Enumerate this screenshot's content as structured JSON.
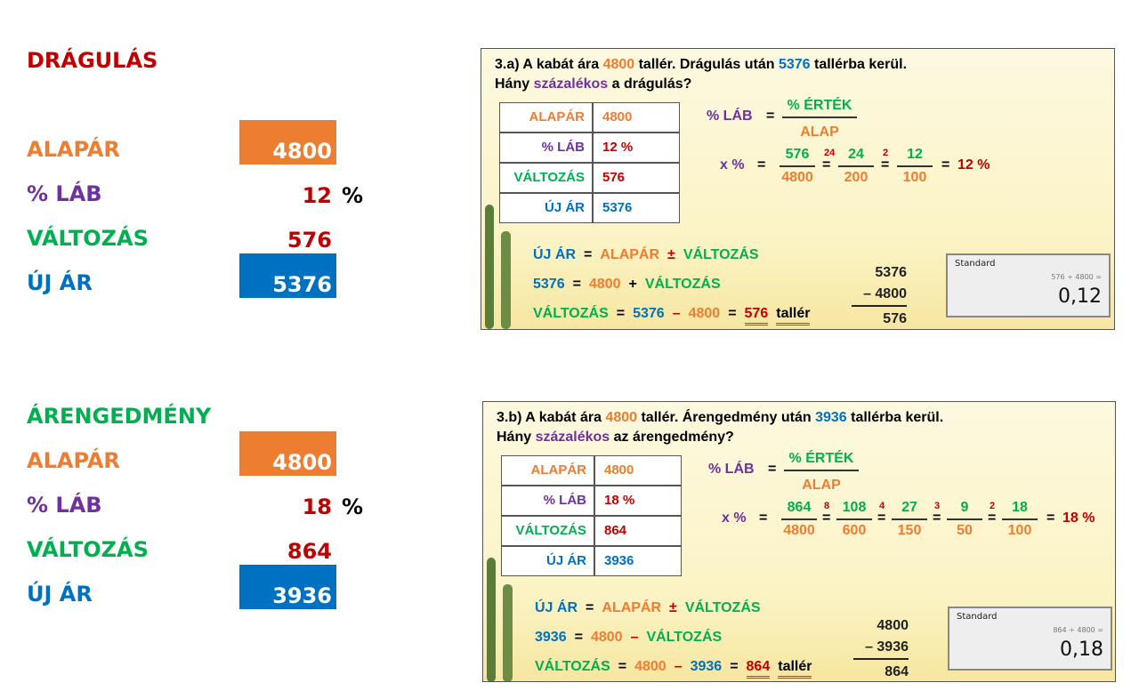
{
  "left": [
    {
      "heading": [
        "DRÁGULÁS",
        "#c00000"
      ],
      "rows": [
        {
          "label": [
            "ALAPÁR",
            "#ed7d31"
          ],
          "value": [
            "4800",
            "#ffffff"
          ],
          "box": "#ed7d31"
        },
        {
          "label": [
            "% LÁB",
            "#7030a0"
          ],
          "value": [
            "12",
            "#c00000"
          ],
          "unit": [
            "%",
            "#000000"
          ]
        },
        {
          "label": [
            "VÁLTOZÁS",
            "#00b050"
          ],
          "value": [
            "576",
            "#c00000"
          ]
        },
        {
          "label": [
            "ÚJ ÁR",
            "#0070c0"
          ],
          "value": [
            "5376",
            "#ffffff"
          ],
          "box": "#0070c0"
        }
      ]
    },
    {
      "heading": [
        "ÁRENGEDMÉNY",
        "#00b050"
      ],
      "rows": [
        {
          "label": [
            "ALAPÁR",
            "#ed7d31"
          ],
          "value": [
            "4800",
            "#ffffff"
          ],
          "box": "#ed7d31"
        },
        {
          "label": [
            "% LÁB",
            "#7030a0"
          ],
          "value": [
            "18",
            "#c00000"
          ],
          "unit": [
            "%",
            "#000000"
          ]
        },
        {
          "label": [
            "VÁLTOZÁS",
            "#00b050"
          ],
          "value": [
            "864",
            "#c00000"
          ]
        },
        {
          "label": [
            "ÚJ ÁR",
            "#0070c0"
          ],
          "value": [
            "3936",
            "#ffffff"
          ],
          "box": "#0070c0"
        }
      ]
    }
  ],
  "slides": [
    {
      "question": [
        [
          [
            "3.a) A kabát ára ",
            "#000000"
          ],
          [
            "4800",
            "#ed7d31"
          ],
          [
            " tallér. Drágulás után ",
            "#000000"
          ],
          [
            "5376",
            "#0070c0"
          ],
          [
            " tallérba kerül.",
            "#000000"
          ]
        ],
        [
          [
            "Hány ",
            "#000000"
          ],
          [
            "százalékos",
            "#7030a0"
          ],
          [
            " a drágulás?",
            "#000000"
          ]
        ]
      ],
      "table": [
        [
          [
            "ALAPÁR",
            "#ed7d31"
          ],
          [
            "4800",
            "#ed7d31"
          ]
        ],
        [
          [
            "% LÁB",
            "#7030a0"
          ],
          [
            "12 %",
            "#c00000"
          ]
        ],
        [
          [
            "VÁLTOZÁS",
            "#00b050"
          ],
          [
            "576",
            "#c00000"
          ]
        ],
        [
          [
            "ÚJ ÁR",
            "#0070c0"
          ],
          [
            "5376",
            "#0070c0"
          ]
        ]
      ],
      "formula": {
        "lhs": "% LÁB",
        "eq": "=",
        "num": "% ÉRTÉK",
        "den": "ALAP"
      },
      "chain": {
        "lhs": "x %",
        "eq": "=",
        "fractions": [
          {
            "num": "576",
            "den": "4800"
          },
          {
            "mark": "24",
            "num": "24",
            "den": "200"
          },
          {
            "mark": "2",
            "num": "12",
            "den": "100"
          }
        ],
        "result": "12 %"
      },
      "equations": [
        [
          [
            "ÚJ ÁR",
            "#0070c0"
          ],
          [
            "=",
            "#000000"
          ],
          [
            "ALAPÁR",
            "#ed7d31"
          ],
          [
            "±",
            "#c00000"
          ],
          [
            "VÁLTOZÁS",
            "#00b050"
          ]
        ],
        [
          [
            "5376",
            "#0070c0"
          ],
          [
            "=",
            "#000000"
          ],
          [
            "4800",
            "#ed7d31"
          ],
          [
            "+",
            "#000000"
          ],
          [
            "VÁLTOZÁS",
            "#00b050"
          ]
        ],
        [
          [
            "VÁLTOZÁS",
            "#00b050"
          ],
          [
            "=",
            "#000000"
          ],
          [
            "5376",
            "#0070c0"
          ],
          [
            "–",
            "#c00000"
          ],
          [
            "4800",
            "#ed7d31"
          ],
          [
            "=",
            "#000000"
          ],
          [
            "576",
            "#c00000"
          ],
          [
            "tallér",
            "#000000"
          ]
        ]
      ],
      "subtraction": [
        "5376",
        "– 4800",
        "576"
      ],
      "calculator": {
        "mode": "Standard",
        "expression": "576 ÷ 4800 =",
        "result": "0,12"
      }
    },
    {
      "question": [
        [
          [
            "3.b) A kabát ára ",
            "#000000"
          ],
          [
            "4800",
            "#ed7d31"
          ],
          [
            " tallér. Árengedmény után ",
            "#000000"
          ],
          [
            "3936",
            "#0070c0"
          ],
          [
            " tallérba kerül.",
            "#000000"
          ]
        ],
        [
          [
            "Hány ",
            "#000000"
          ],
          [
            "százalékos",
            "#7030a0"
          ],
          [
            " az árengedmény?",
            "#000000"
          ]
        ]
      ],
      "table": [
        [
          [
            "ALAPÁR",
            "#ed7d31"
          ],
          [
            "4800",
            "#ed7d31"
          ]
        ],
        [
          [
            "% LÁB",
            "#7030a0"
          ],
          [
            "18 %",
            "#c00000"
          ]
        ],
        [
          [
            "VÁLTOZÁS",
            "#00b050"
          ],
          [
            "864",
            "#c00000"
          ]
        ],
        [
          [
            "ÚJ ÁR",
            "#0070c0"
          ],
          [
            "3936",
            "#0070c0"
          ]
        ]
      ],
      "formula": {
        "lhs": "% LÁB",
        "eq": "=",
        "num": "% ÉRTÉK",
        "den": "ALAP"
      },
      "chain": {
        "lhs": "x %",
        "eq": "=",
        "fractions": [
          {
            "num": "864",
            "den": "4800"
          },
          {
            "mark": "8",
            "num": "108",
            "den": "600"
          },
          {
            "mark": "4",
            "num": "27",
            "den": "150"
          },
          {
            "mark": "3",
            "num": "9",
            "den": "50"
          },
          {
            "mark": "2",
            "num": "18",
            "den": "100"
          }
        ],
        "result": "18 %"
      },
      "equations": [
        [
          [
            "ÚJ ÁR",
            "#0070c0"
          ],
          [
            "=",
            "#000000"
          ],
          [
            "ALAPÁR",
            "#ed7d31"
          ],
          [
            "±",
            "#c00000"
          ],
          [
            "VÁLTOZÁS",
            "#00b050"
          ]
        ],
        [
          [
            "3936",
            "#0070c0"
          ],
          [
            "=",
            "#000000"
          ],
          [
            "4800",
            "#ed7d31"
          ],
          [
            "–",
            "#c00000"
          ],
          [
            "VÁLTOZÁS",
            "#00b050"
          ]
        ],
        [
          [
            "VÁLTOZÁS",
            "#00b050"
          ],
          [
            "=",
            "#000000"
          ],
          [
            "4800",
            "#ed7d31"
          ],
          [
            "–",
            "#c00000"
          ],
          [
            "3936",
            "#0070c0"
          ],
          [
            "=",
            "#000000"
          ],
          [
            "864",
            "#c00000"
          ],
          [
            "tallér",
            "#000000"
          ]
        ]
      ],
      "subtraction": [
        "4800",
        "– 3936",
        "864"
      ],
      "calculator": {
        "mode": "Standard",
        "expression": "864 ÷ 4800 =",
        "result": "0,18"
      }
    }
  ]
}
